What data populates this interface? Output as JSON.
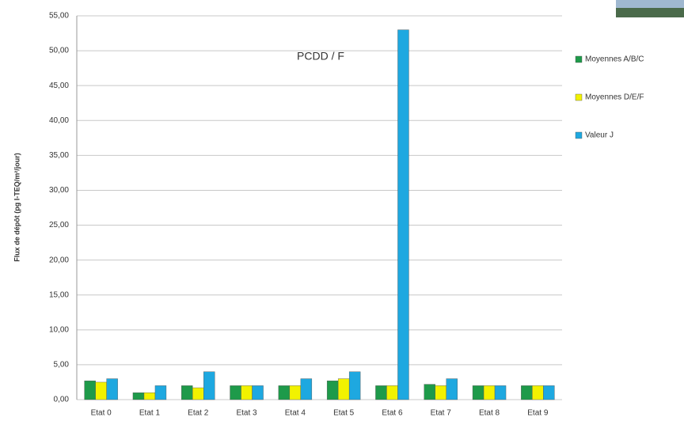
{
  "chart_data": {
    "type": "bar",
    "title": "PCDD / F",
    "y_label": "Flux de dépôt (pg I-TEQ/m²/jour)",
    "categories": [
      "Etat 0",
      "Etat 1",
      "Etat 2",
      "Etat 3",
      "Etat 4",
      "Etat 5",
      "Etat 6",
      "Etat 7",
      "Etat 8",
      "Etat 9"
    ],
    "series": [
      {
        "name": "Moyennes A/B/C",
        "color": "#1e9a4a",
        "values": [
          2.7,
          1.0,
          2.0,
          2.0,
          2.0,
          2.7,
          2.0,
          2.2,
          2.0,
          2.0
        ]
      },
      {
        "name": "Moyennes D/E/F",
        "color": "#f2f200",
        "values": [
          2.5,
          1.0,
          1.7,
          2.0,
          2.0,
          3.0,
          2.0,
          2.0,
          2.0,
          2.0
        ]
      },
      {
        "name": "Valeur J",
        "color": "#1ea8e0",
        "values": [
          3.0,
          2.0,
          4.0,
          2.0,
          3.0,
          4.0,
          53.0,
          3.0,
          2.0,
          2.0
        ]
      }
    ],
    "ylim": [
      0,
      55
    ],
    "yticks": [
      {
        "value": 0,
        "label": "0,00"
      },
      {
        "value": 5,
        "label": "5,00"
      },
      {
        "value": 10,
        "label": "10,00"
      },
      {
        "value": 15,
        "label": "15,00"
      },
      {
        "value": 20,
        "label": "20,00"
      },
      {
        "value": 25,
        "label": "25,00"
      },
      {
        "value": 30,
        "label": "30,00"
      },
      {
        "value": 35,
        "label": "35,00"
      },
      {
        "value": 40,
        "label": "40,00"
      },
      {
        "value": 45,
        "label": "45,00"
      },
      {
        "value": 50,
        "label": "50,00"
      },
      {
        "value": 55,
        "label": "55,00"
      }
    ],
    "grid": true,
    "legend": "right"
  }
}
